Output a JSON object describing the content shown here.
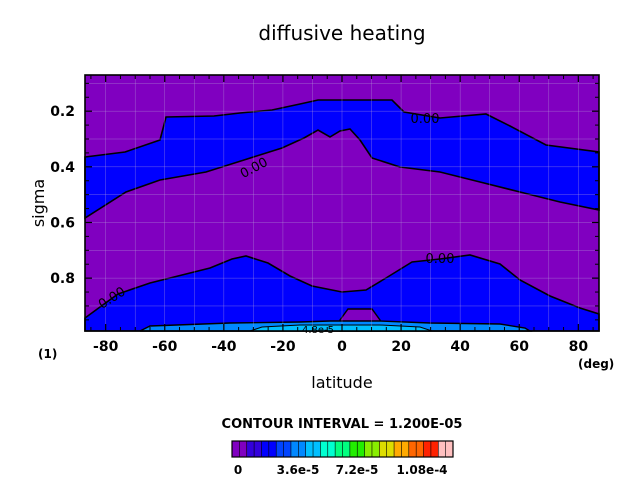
{
  "chart_data": {
    "type": "contour",
    "title": "diffusive heating",
    "xlabel": "latitude",
    "ylabel": "sigma",
    "x_unit": "(deg)",
    "corner_label": "(1)",
    "xlim": [
      -87,
      87
    ],
    "ylim": [
      0.07,
      0.99
    ],
    "y_inverted": true,
    "x_ticks": [
      -80,
      -60,
      -40,
      -20,
      0,
      20,
      40,
      60,
      80
    ],
    "x_tick_labels": [
      "-80",
      "-60",
      "-40",
      "-20",
      "0",
      "20",
      "40",
      "60",
      "80"
    ],
    "y_ticks": [
      0.2,
      0.4,
      0.6,
      0.8
    ],
    "y_tick_labels": [
      "0.2",
      "0.4",
      "0.6",
      "0.8"
    ],
    "grid": true,
    "contour_interval": "CONTOUR INTERVAL = 1.200E-05",
    "contour_labels": [
      "0.00",
      "0.00",
      "0.00",
      "0.00",
      "4.8e-5"
    ],
    "colorbar": {
      "tick_labels": [
        "0",
        "3.6e-5",
        "7.2e-5",
        "1.08e-4"
      ],
      "colors": [
        "#8000c0",
        "#3300dd",
        "#0000ff",
        "#0044ff",
        "#0088ff",
        "#00c0ff",
        "#00ffd0",
        "#00ff80",
        "#22ee00",
        "#88ee00",
        "#dddd00",
        "#ffaa00",
        "#ff6600",
        "#ff2200",
        "#ffc0c0"
      ]
    },
    "regions": [
      {
        "level": "0",
        "color": "#8000c0"
      },
      {
        "level": "0 to 1.2e-5",
        "color": "#0000ff"
      },
      {
        "level": "near-surface band",
        "color": "#0088ff"
      }
    ]
  }
}
